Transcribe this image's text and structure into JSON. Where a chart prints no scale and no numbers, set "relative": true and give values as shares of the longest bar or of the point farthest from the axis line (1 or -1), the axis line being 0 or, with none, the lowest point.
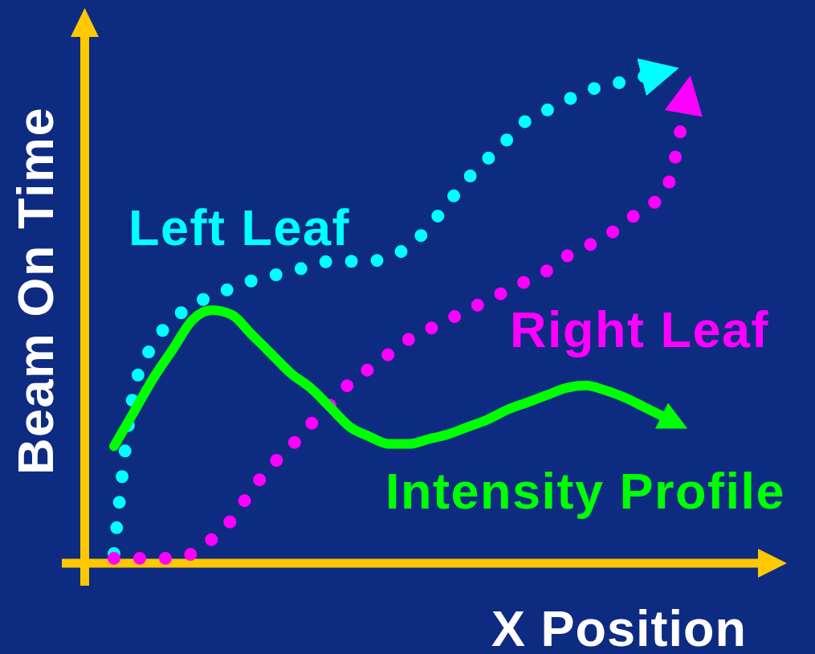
{
  "chart_data": {
    "type": "line",
    "relative": true,
    "xlabel": "X Position",
    "ylabel": "Beam On Time",
    "categories": [
      null,
      null,
      null,
      null,
      null,
      null,
      null,
      null,
      null,
      null,
      null,
      null,
      null,
      null,
      null,
      null,
      null,
      null,
      null,
      null,
      null,
      null,
      null,
      null,
      null,
      null,
      null,
      null,
      null,
      null
    ],
    "series": [
      {
        "name": "Left Leaf",
        "color": "#00ffff",
        "line_style": "dotted",
        "values": [
          0.02,
          0.35,
          0.45,
          0.5,
          0.53,
          0.55,
          0.565,
          0.58,
          0.59,
          0.6,
          0.61,
          0.62,
          0.62,
          0.62,
          0.63,
          0.65,
          0.69,
          0.74,
          0.79,
          0.83,
          0.87,
          0.91,
          0.93,
          0.95,
          0.97,
          0.98,
          0.99,
          1.0,
          null,
          null
        ]
      },
      {
        "name": "Right Leaf",
        "color": "#ff00ff",
        "line_style": "dotted",
        "values": [
          0.01,
          0.01,
          0.01,
          0.01,
          0.02,
          0.05,
          0.09,
          0.15,
          0.2,
          0.24,
          0.285,
          0.325,
          0.37,
          0.4,
          0.43,
          0.46,
          0.48,
          0.5,
          0.52,
          0.54,
          0.56,
          0.58,
          0.6,
          0.63,
          0.65,
          0.67,
          0.7,
          0.73,
          0.76,
          0.93
        ]
      },
      {
        "name": "Intensity Profile",
        "color": "#00ff00",
        "line_style": "solid",
        "values": [
          0.24,
          0.31,
          0.38,
          0.44,
          0.5,
          0.52,
          0.51,
          0.47,
          0.43,
          0.39,
          0.36,
          0.32,
          0.28,
          0.26,
          0.245,
          0.245,
          0.255,
          0.265,
          0.28,
          0.295,
          0.315,
          0.33,
          0.345,
          0.36,
          0.365,
          0.355,
          0.34,
          0.32,
          0.3,
          null
        ]
      }
    ]
  }
}
